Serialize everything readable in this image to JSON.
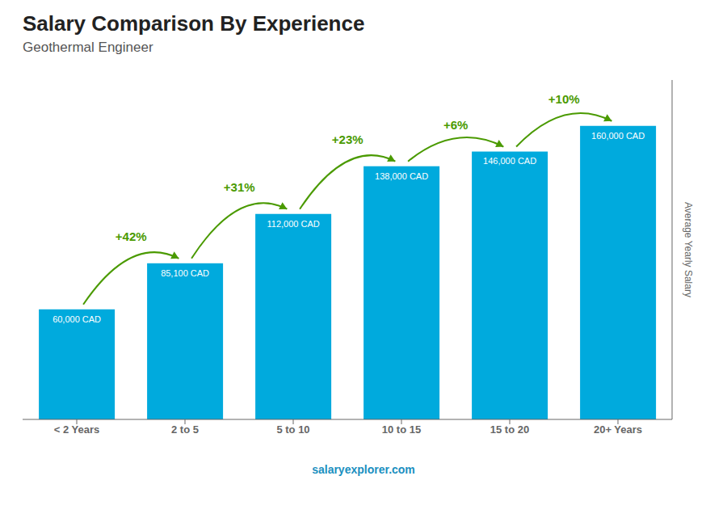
{
  "chart_data": {
    "type": "bar",
    "title": "Salary Comparison By Experience",
    "subtitle": "Geothermal Engineer",
    "y_label": "Average Yearly Salary",
    "categories": [
      "< 2 Years",
      "2 to 5",
      "5 to 10",
      "10 to 15",
      "15 to 20",
      "20+ Years"
    ],
    "values": [
      60000,
      85100,
      112000,
      138000,
      146000,
      160000
    ],
    "value_labels": [
      "60,000 CAD",
      "85,100 CAD",
      "112,000 CAD",
      "138,000 CAD",
      "146,000 CAD",
      "160,000 CAD"
    ],
    "data_labels": true,
    "color": "#00AADD",
    "ylim": [
      0,
      185000
    ],
    "tick_labels": "x",
    "grid": false,
    "annotations": [
      {
        "text": "+42%",
        "from": "< 2 Years",
        "to": "2 to 5"
      },
      {
        "text": "+31%",
        "from": "2 to 5",
        "to": "5 to 10"
      },
      {
        "text": "+23%",
        "from": "5 to 10",
        "to": "10 to 15"
      },
      {
        "text": "+6%",
        "from": "10 to 15",
        "to": "15 to 20"
      },
      {
        "text": "+10%",
        "from": "15 to 20",
        "to": "20+ Years"
      },
      {
        "text": "salaryexplorer.com"
      }
    ]
  }
}
